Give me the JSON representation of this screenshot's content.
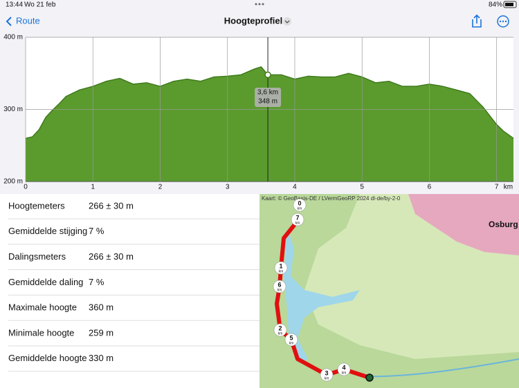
{
  "status": {
    "time": "13:44",
    "date": "Wo 21 feb",
    "battery": "84%"
  },
  "nav": {
    "back": "Route",
    "title": "Hoogteprofiel"
  },
  "chart_data": {
    "type": "area",
    "x": [
      0,
      0.1,
      0.2,
      0.3,
      0.4,
      0.5,
      0.6,
      0.8,
      1.0,
      1.2,
      1.4,
      1.6,
      1.8,
      2.0,
      2.2,
      2.4,
      2.6,
      2.8,
      3.0,
      3.2,
      3.4,
      3.5,
      3.6,
      3.8,
      4.0,
      4.2,
      4.4,
      4.6,
      4.8,
      5.0,
      5.2,
      5.4,
      5.6,
      5.8,
      6.0,
      6.2,
      6.4,
      6.6,
      6.8,
      7.0,
      7.1,
      7.25
    ],
    "values": [
      260,
      262,
      272,
      289,
      299,
      308,
      318,
      327,
      332,
      339,
      343,
      335,
      337,
      332,
      339,
      342,
      339,
      345,
      346,
      348,
      356,
      359,
      348,
      348,
      342,
      346,
      345,
      345,
      350,
      345,
      337,
      339,
      332,
      332,
      335,
      332,
      327,
      322,
      303,
      279,
      270,
      260
    ],
    "xlim": [
      0,
      7.25
    ],
    "ylim": [
      200,
      400
    ],
    "xticks": [
      0,
      1,
      2,
      3,
      4,
      5,
      6,
      7
    ],
    "x_unit": "km",
    "yticks": [
      {
        "value": 200,
        "label": "200 m"
      },
      {
        "value": 300,
        "label": "300 m"
      },
      {
        "value": 400,
        "label": "400 m"
      }
    ],
    "color": "#5b9b2e",
    "line_color": "#3f7a1c",
    "grid": true,
    "cursor": {
      "x": 3.6,
      "y": 348,
      "x_label": "3,6 km",
      "y_label": "348 m"
    }
  },
  "stats": {
    "rows": [
      [
        "Hoogtemeters",
        "266 ± 30 m"
      ],
      [
        "Gemiddelde stijging",
        "7 %"
      ],
      [
        "Dalingsmeters",
        "266 ± 30 m"
      ],
      [
        "Gemiddelde daling",
        "7 %"
      ],
      [
        "Maximale hoogte",
        "360 m"
      ],
      [
        "Minimale hoogte",
        "259 m"
      ],
      [
        "Gemiddelde hoogte",
        "330 m"
      ]
    ]
  },
  "map": {
    "attribution": "Kaart: © GeoBasis-DE / LVermGeoRP 2024 dl-de/by-2-0",
    "place": "Osburg",
    "markers": [
      {
        "label": "0",
        "unit": "km"
      },
      {
        "label": "7",
        "unit": "km"
      },
      {
        "label": "1",
        "unit": "km"
      },
      {
        "label": "6",
        "unit": "km"
      },
      {
        "label": "2",
        "unit": "km"
      },
      {
        "label": "5",
        "unit": "km"
      },
      {
        "label": "3",
        "unit": "km"
      },
      {
        "label": "4",
        "unit": "km"
      }
    ]
  }
}
